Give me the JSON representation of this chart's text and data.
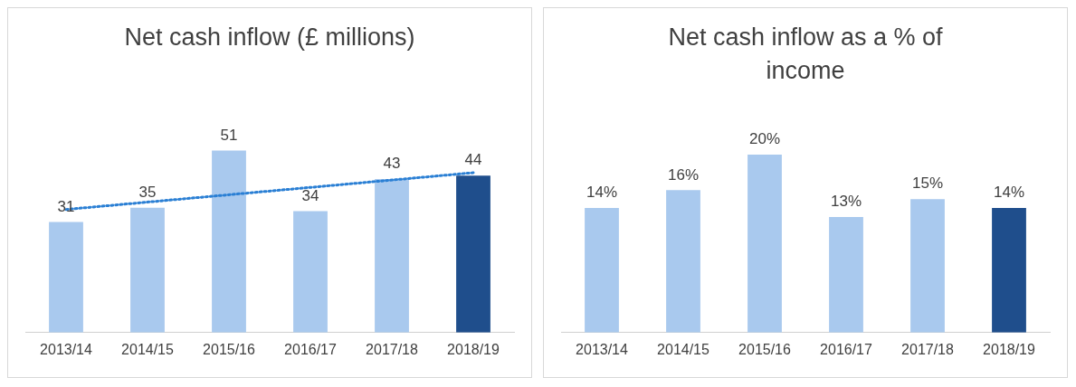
{
  "chart_data": [
    {
      "type": "bar",
      "title": "Net cash inflow (£ millions)",
      "categories": [
        "2013/14",
        "2014/15",
        "2015/16",
        "2016/17",
        "2017/18",
        "2018/19"
      ],
      "grid": false,
      "legend": false,
      "series": [
        {
          "values": [
            31,
            35,
            51,
            34,
            43,
            44
          ],
          "value_labels": [
            "31",
            "35",
            "51",
            "34",
            "43",
            "44"
          ],
          "colors": [
            "#a9c9ee",
            "#a9c9ee",
            "#a9c9ee",
            "#a9c9ee",
            "#a9c9ee",
            "#1f4e8c"
          ]
        },
        {
          "type": "line",
          "x": [
            "2013/14",
            "2018/19"
          ],
          "values": [
            34.5,
            44.8
          ],
          "color": "#2a7fd4",
          "line_style": "dotted",
          "marker": "none"
        }
      ]
    },
    {
      "type": "bar",
      "title": "Net cash inflow as a % of income",
      "categories": [
        "2013/14",
        "2014/15",
        "2015/16",
        "2016/17",
        "2017/18",
        "2018/19"
      ],
      "grid": false,
      "legend": false,
      "series": [
        {
          "values": [
            14,
            16,
            20,
            13,
            15,
            14
          ],
          "value_labels": [
            "14%",
            "16%",
            "20%",
            "13%",
            "15%",
            "14%"
          ],
          "colors": [
            "#a9c9ee",
            "#a9c9ee",
            "#a9c9ee",
            "#a9c9ee",
            "#a9c9ee",
            "#1f4e8c"
          ]
        }
      ]
    }
  ]
}
